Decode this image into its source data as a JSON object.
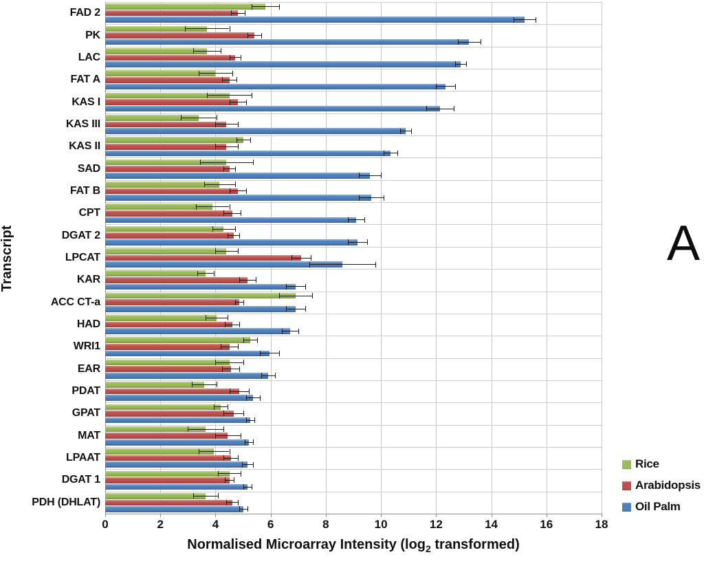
{
  "figure_label": "A",
  "axes": {
    "x_title_main": "Normalised Microarray Intensity (log",
    "x_title_sub": "2",
    "x_title_tail": " transformed)",
    "y_title": "Transcript",
    "x_ticks": [
      "0",
      "2",
      "4",
      "6",
      "8",
      "10",
      "12",
      "14",
      "16",
      "18"
    ],
    "x_min": 0,
    "x_max": 18,
    "grid_step": 2
  },
  "legend": {
    "items": [
      {
        "label": "Rice",
        "color": "#9BBB59"
      },
      {
        "label": "Arabidopsis",
        "color": "#C0504D"
      },
      {
        "label": "Oil Palm",
        "color": "#4F81BD"
      }
    ]
  },
  "colors": {
    "grid": "#c6c6c6",
    "axis": "#8e8e8e",
    "error_bar": "#1a1a1a",
    "text": "#111111",
    "background": "#ffffff"
  },
  "chart_data": {
    "type": "bar",
    "orientation": "horizontal",
    "title": "",
    "xlabel": "Normalised Microarray Intensity (log2 transformed)",
    "ylabel": "Transcript",
    "xlim": [
      0,
      18
    ],
    "grid": true,
    "error_bars": true,
    "legend_position": "right-bottom",
    "categories": [
      "FAD 2",
      "PK",
      "LAC",
      "FAT A",
      "KAS I",
      "KAS III",
      "KAS II",
      "SAD",
      "FAT B",
      "CPT",
      "DGAT 2",
      "LPCAT",
      "KAR",
      "ACC CT-a",
      "HAD",
      "WRI1",
      "EAR",
      "PDAT",
      "GPAT",
      "MAT",
      "LPAAT",
      "DGAT 1",
      "PDH (DHLAT)"
    ],
    "series": [
      {
        "name": "Rice",
        "color": "#9BBB59",
        "values": [
          5.8,
          3.7,
          3.7,
          4.0,
          4.5,
          3.4,
          5.0,
          4.4,
          4.15,
          3.9,
          4.3,
          4.4,
          3.65,
          6.9,
          4.05,
          5.25,
          4.5,
          3.6,
          4.2,
          3.65,
          3.95,
          4.5,
          3.65
        ],
        "errors": [
          0.5,
          0.8,
          0.5,
          0.6,
          0.8,
          0.65,
          0.25,
          0.95,
          0.55,
          0.6,
          0.4,
          0.4,
          0.3,
          0.6,
          0.4,
          0.25,
          0.5,
          0.45,
          0.25,
          0.65,
          0.55,
          0.4,
          0.45
        ]
      },
      {
        "name": "Arabidopsis",
        "color": "#C0504D",
        "values": [
          4.8,
          5.4,
          4.7,
          4.5,
          4.8,
          4.4,
          4.4,
          4.5,
          4.8,
          4.6,
          4.65,
          7.1,
          5.15,
          4.85,
          4.6,
          4.5,
          4.55,
          4.85,
          4.65,
          4.45,
          4.55,
          4.5,
          4.6
        ],
        "errors": [
          0.25,
          0.25,
          0.2,
          0.25,
          0.3,
          0.4,
          0.4,
          0.2,
          0.3,
          0.3,
          0.2,
          0.35,
          0.3,
          0.15,
          0.25,
          0.3,
          0.3,
          0.35,
          0.35,
          0.45,
          0.25,
          0.15,
          0.2
        ]
      },
      {
        "name": "Oil Palm",
        "color": "#4F81BD",
        "values": [
          15.2,
          13.2,
          12.9,
          12.35,
          12.15,
          10.9,
          10.35,
          9.6,
          9.65,
          9.1,
          9.15,
          8.6,
          6.9,
          6.9,
          6.7,
          5.95,
          5.9,
          5.35,
          5.25,
          5.2,
          5.15,
          5.15,
          5.0
        ],
        "errors": [
          0.4,
          0.4,
          0.2,
          0.35,
          0.5,
          0.2,
          0.25,
          0.4,
          0.45,
          0.3,
          0.35,
          1.2,
          0.35,
          0.35,
          0.3,
          0.35,
          0.25,
          0.25,
          0.15,
          0.15,
          0.2,
          0.15,
          0.15
        ]
      }
    ]
  }
}
